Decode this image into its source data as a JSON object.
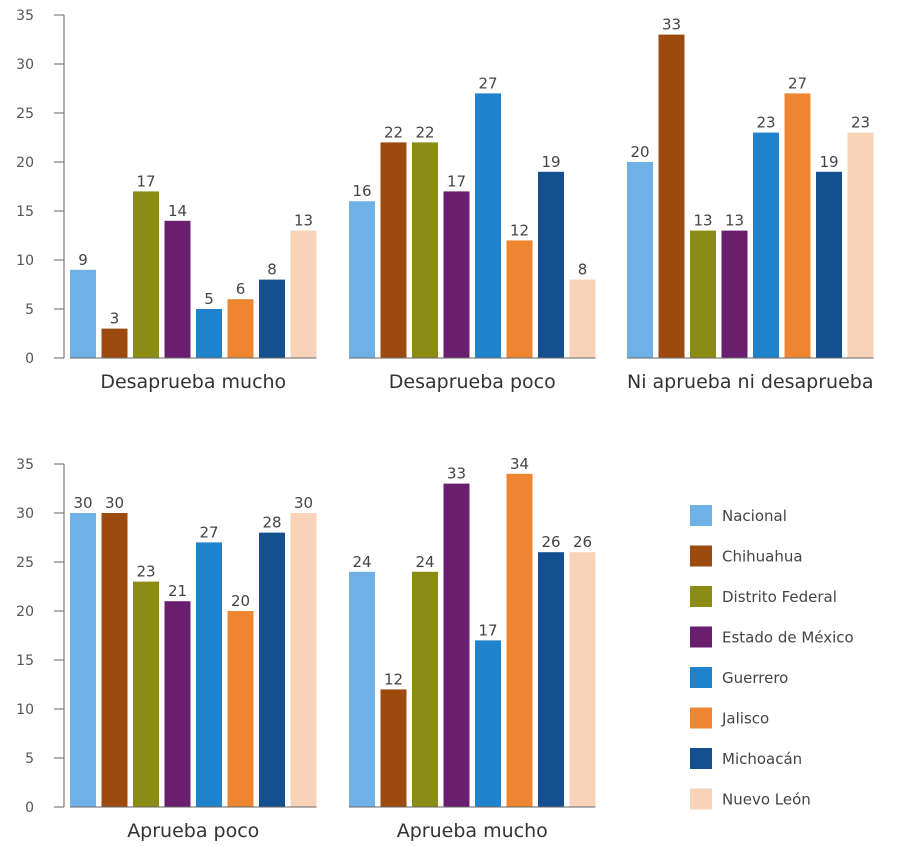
{
  "chart_data": {
    "type": "bar",
    "ylim": [
      0,
      35
    ],
    "yticks": [
      0,
      5,
      10,
      15,
      20,
      25,
      30,
      35
    ],
    "legend_position": "bottom-right",
    "grid": false,
    "series": [
      {
        "name": "Nacional",
        "color": "#6fb1e6"
      },
      {
        "name": "Chihuahua",
        "color": "#9c4a0e"
      },
      {
        "name": "Distrito Federal",
        "color": "#8a8c14"
      },
      {
        "name": "Estado de México",
        "color": "#6a1f6e"
      },
      {
        "name": "Guerrero",
        "color": "#1f82cc"
      },
      {
        "name": "Jalisco",
        "color": "#ee8530"
      },
      {
        "name": "Michoacán",
        "color": "#14508f"
      },
      {
        "name": "Nuevo León",
        "color": "#f9d3b9"
      }
    ],
    "groups": [
      {
        "category": "Desaprueba mucho",
        "values": [
          9,
          3,
          17,
          14,
          5,
          6,
          8,
          13
        ]
      },
      {
        "category": "Desaprueba poco",
        "values": [
          16,
          22,
          22,
          17,
          27,
          12,
          19,
          8
        ]
      },
      {
        "category": "Ni aprueba ni desaprueba",
        "values": [
          20,
          33,
          13,
          13,
          23,
          27,
          19,
          23
        ]
      },
      {
        "category": "Aprueba poco",
        "values": [
          30,
          30,
          23,
          21,
          27,
          20,
          28,
          30
        ]
      },
      {
        "category": "Aprueba mucho",
        "values": [
          24,
          12,
          24,
          33,
          17,
          34,
          26,
          26
        ]
      }
    ]
  }
}
